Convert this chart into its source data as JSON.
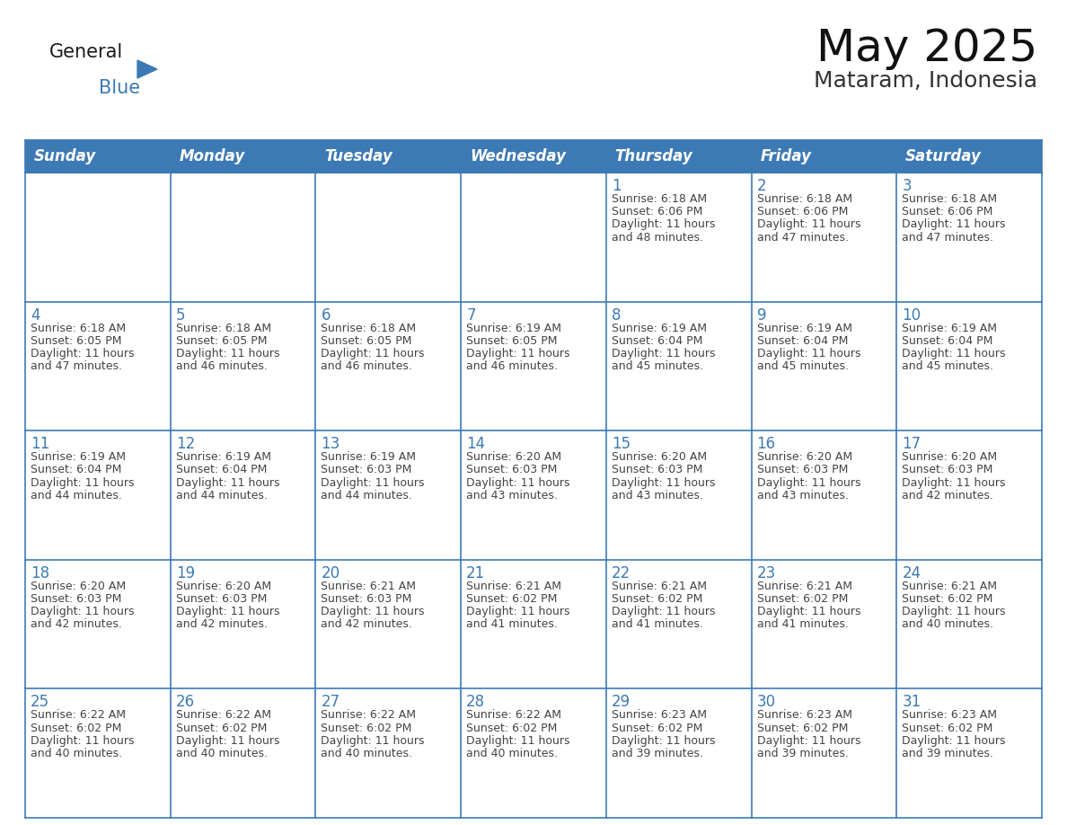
{
  "title": "May 2025",
  "subtitle": "Mataram, Indonesia",
  "header_bg_color": "#3d7ab5",
  "header_text_color": "#ffffff",
  "border_color": "#3d7ab5",
  "text_color": "#444444",
  "day_number_color": "#3d7ab5",
  "days_of_week": [
    "Sunday",
    "Monday",
    "Tuesday",
    "Wednesday",
    "Thursday",
    "Friday",
    "Saturday"
  ],
  "weeks": [
    [
      {
        "day": "",
        "sunrise": "",
        "sunset": "",
        "daylight_hours": "",
        "daylight_min": ""
      },
      {
        "day": "",
        "sunrise": "",
        "sunset": "",
        "daylight_hours": "",
        "daylight_min": ""
      },
      {
        "day": "",
        "sunrise": "",
        "sunset": "",
        "daylight_hours": "",
        "daylight_min": ""
      },
      {
        "day": "",
        "sunrise": "",
        "sunset": "",
        "daylight_hours": "",
        "daylight_min": ""
      },
      {
        "day": "1",
        "sunrise": "6:18 AM",
        "sunset": "6:06 PM",
        "daylight_hours": "11 hours",
        "daylight_min": "and 48 minutes."
      },
      {
        "day": "2",
        "sunrise": "6:18 AM",
        "sunset": "6:06 PM",
        "daylight_hours": "11 hours",
        "daylight_min": "and 47 minutes."
      },
      {
        "day": "3",
        "sunrise": "6:18 AM",
        "sunset": "6:06 PM",
        "daylight_hours": "11 hours",
        "daylight_min": "and 47 minutes."
      }
    ],
    [
      {
        "day": "4",
        "sunrise": "6:18 AM",
        "sunset": "6:05 PM",
        "daylight_hours": "11 hours",
        "daylight_min": "and 47 minutes."
      },
      {
        "day": "5",
        "sunrise": "6:18 AM",
        "sunset": "6:05 PM",
        "daylight_hours": "11 hours",
        "daylight_min": "and 46 minutes."
      },
      {
        "day": "6",
        "sunrise": "6:18 AM",
        "sunset": "6:05 PM",
        "daylight_hours": "11 hours",
        "daylight_min": "and 46 minutes."
      },
      {
        "day": "7",
        "sunrise": "6:19 AM",
        "sunset": "6:05 PM",
        "daylight_hours": "11 hours",
        "daylight_min": "and 46 minutes."
      },
      {
        "day": "8",
        "sunrise": "6:19 AM",
        "sunset": "6:04 PM",
        "daylight_hours": "11 hours",
        "daylight_min": "and 45 minutes."
      },
      {
        "day": "9",
        "sunrise": "6:19 AM",
        "sunset": "6:04 PM",
        "daylight_hours": "11 hours",
        "daylight_min": "and 45 minutes."
      },
      {
        "day": "10",
        "sunrise": "6:19 AM",
        "sunset": "6:04 PM",
        "daylight_hours": "11 hours",
        "daylight_min": "and 45 minutes."
      }
    ],
    [
      {
        "day": "11",
        "sunrise": "6:19 AM",
        "sunset": "6:04 PM",
        "daylight_hours": "11 hours",
        "daylight_min": "and 44 minutes."
      },
      {
        "day": "12",
        "sunrise": "6:19 AM",
        "sunset": "6:04 PM",
        "daylight_hours": "11 hours",
        "daylight_min": "and 44 minutes."
      },
      {
        "day": "13",
        "sunrise": "6:19 AM",
        "sunset": "6:03 PM",
        "daylight_hours": "11 hours",
        "daylight_min": "and 44 minutes."
      },
      {
        "day": "14",
        "sunrise": "6:20 AM",
        "sunset": "6:03 PM",
        "daylight_hours": "11 hours",
        "daylight_min": "and 43 minutes."
      },
      {
        "day": "15",
        "sunrise": "6:20 AM",
        "sunset": "6:03 PM",
        "daylight_hours": "11 hours",
        "daylight_min": "and 43 minutes."
      },
      {
        "day": "16",
        "sunrise": "6:20 AM",
        "sunset": "6:03 PM",
        "daylight_hours": "11 hours",
        "daylight_min": "and 43 minutes."
      },
      {
        "day": "17",
        "sunrise": "6:20 AM",
        "sunset": "6:03 PM",
        "daylight_hours": "11 hours",
        "daylight_min": "and 42 minutes."
      }
    ],
    [
      {
        "day": "18",
        "sunrise": "6:20 AM",
        "sunset": "6:03 PM",
        "daylight_hours": "11 hours",
        "daylight_min": "and 42 minutes."
      },
      {
        "day": "19",
        "sunrise": "6:20 AM",
        "sunset": "6:03 PM",
        "daylight_hours": "11 hours",
        "daylight_min": "and 42 minutes."
      },
      {
        "day": "20",
        "sunrise": "6:21 AM",
        "sunset": "6:03 PM",
        "daylight_hours": "11 hours",
        "daylight_min": "and 42 minutes."
      },
      {
        "day": "21",
        "sunrise": "6:21 AM",
        "sunset": "6:02 PM",
        "daylight_hours": "11 hours",
        "daylight_min": "and 41 minutes."
      },
      {
        "day": "22",
        "sunrise": "6:21 AM",
        "sunset": "6:02 PM",
        "daylight_hours": "11 hours",
        "daylight_min": "and 41 minutes."
      },
      {
        "day": "23",
        "sunrise": "6:21 AM",
        "sunset": "6:02 PM",
        "daylight_hours": "11 hours",
        "daylight_min": "and 41 minutes."
      },
      {
        "day": "24",
        "sunrise": "6:21 AM",
        "sunset": "6:02 PM",
        "daylight_hours": "11 hours",
        "daylight_min": "and 40 minutes."
      }
    ],
    [
      {
        "day": "25",
        "sunrise": "6:22 AM",
        "sunset": "6:02 PM",
        "daylight_hours": "11 hours",
        "daylight_min": "and 40 minutes."
      },
      {
        "day": "26",
        "sunrise": "6:22 AM",
        "sunset": "6:02 PM",
        "daylight_hours": "11 hours",
        "daylight_min": "and 40 minutes."
      },
      {
        "day": "27",
        "sunrise": "6:22 AM",
        "sunset": "6:02 PM",
        "daylight_hours": "11 hours",
        "daylight_min": "and 40 minutes."
      },
      {
        "day": "28",
        "sunrise": "6:22 AM",
        "sunset": "6:02 PM",
        "daylight_hours": "11 hours",
        "daylight_min": "and 40 minutes."
      },
      {
        "day": "29",
        "sunrise": "6:23 AM",
        "sunset": "6:02 PM",
        "daylight_hours": "11 hours",
        "daylight_min": "and 39 minutes."
      },
      {
        "day": "30",
        "sunrise": "6:23 AM",
        "sunset": "6:02 PM",
        "daylight_hours": "11 hours",
        "daylight_min": "and 39 minutes."
      },
      {
        "day": "31",
        "sunrise": "6:23 AM",
        "sunset": "6:02 PM",
        "daylight_hours": "11 hours",
        "daylight_min": "and 39 minutes."
      }
    ]
  ],
  "logo_text1": "General",
  "logo_text2": "Blue",
  "logo_color1": "#1a1a1a",
  "logo_color2": "#3d7ab5",
  "logo_triangle_color": "#3d7ab5",
  "title_fontsize": 36,
  "subtitle_fontsize": 18,
  "header_fontsize": 12,
  "day_num_fontsize": 12,
  "cell_text_fontsize": 9
}
